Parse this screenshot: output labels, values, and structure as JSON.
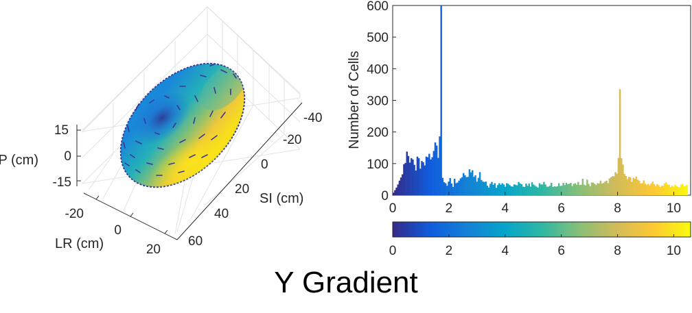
{
  "figure_title": "Y Gradient",
  "chart_data": [
    {
      "type": "surface3d",
      "description_labels": {
        "zlabel": "AP (cm)",
        "xlabel": "LR (cm)",
        "ylabel": "SI (cm)"
      },
      "z_ticks": [
        "15",
        "0",
        "-15"
      ],
      "x_ticks": [
        "-20",
        "0",
        "20"
      ],
      "y_ticks": [
        "-40",
        "-20",
        "0",
        "20",
        "40",
        "60"
      ],
      "colormap": [
        "#352a87",
        "#0f5cdd",
        "#1481d6",
        "#06a4ca",
        "#2eb7a4",
        "#87bf77",
        "#d1bb59",
        "#fec832",
        "#f9fb0e"
      ]
    },
    {
      "type": "bar",
      "title": "",
      "xlabel": "",
      "ylabel": "Number of Cells",
      "xlim": [
        0,
        10.6
      ],
      "ylim": [
        0,
        600
      ],
      "x_ticks": [
        0,
        2,
        4,
        6,
        8,
        10
      ],
      "y_ticks": [
        0,
        100,
        200,
        300,
        400,
        500,
        600
      ],
      "bin_width": 0.053,
      "values": [
        8,
        16,
        24,
        34,
        46,
        56,
        66,
        98,
        102,
        138,
        124,
        103,
        117,
        113,
        96,
        78,
        122,
        117,
        84,
        108,
        104,
        94,
        122,
        120,
        131,
        113,
        120,
        140,
        167,
        157,
        118,
        186,
        600,
        55,
        41,
        38,
        30,
        43,
        54,
        37,
        26,
        52,
        38,
        40,
        46,
        53,
        57,
        70,
        63,
        57,
        58,
        82,
        72,
        79,
        58,
        63,
        43,
        55,
        73,
        48,
        43,
        42,
        43,
        30,
        24,
        36,
        42,
        33,
        38,
        23,
        32,
        38,
        33,
        38,
        34,
        27,
        38,
        36,
        32,
        28,
        27,
        34,
        33,
        31,
        42,
        37,
        35,
        27,
        26,
        37,
        30,
        37,
        27,
        41,
        34,
        30,
        27,
        24,
        38,
        34,
        34,
        42,
        34,
        27,
        27,
        30,
        39,
        26,
        28,
        27,
        28,
        38,
        29,
        30,
        39,
        32,
        39,
        35,
        36,
        39,
        29,
        36,
        38,
        33,
        42,
        32,
        33,
        52,
        33,
        31,
        49,
        36,
        28,
        40,
        40,
        36,
        32,
        38,
        37,
        46,
        37,
        39,
        43,
        46,
        38,
        53,
        57,
        60,
        60,
        73,
        68,
        118,
        335,
        117,
        97,
        67,
        61,
        51,
        58,
        57,
        42,
        55,
        52,
        59,
        49,
        46,
        37,
        38,
        47,
        36,
        33,
        36,
        31,
        37,
        43,
        35,
        29,
        35,
        32,
        26,
        30,
        30,
        37,
        41,
        34,
        33,
        26,
        30,
        27,
        33,
        29,
        26,
        25,
        34,
        36,
        28,
        30,
        33
      ]
    },
    {
      "type": "colorbar",
      "clim": [
        0,
        10.6
      ],
      "ticks": [
        0,
        2,
        4,
        6,
        8,
        10
      ]
    }
  ]
}
